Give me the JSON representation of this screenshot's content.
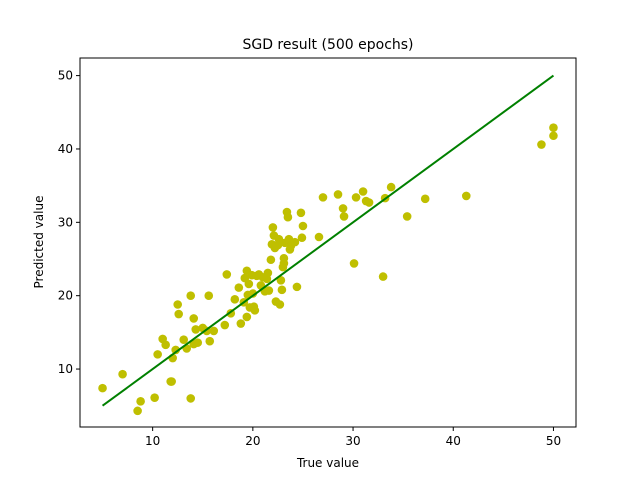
{
  "chart_data": {
    "type": "scatter",
    "title": "SGD result (500 epochs)",
    "xlabel": "True value",
    "ylabel": "Predicted value",
    "xlim": [
      2.75,
      52.25
    ],
    "ylim": [
      2.1,
      52.4
    ],
    "xticks": [
      10,
      20,
      30,
      40,
      50
    ],
    "yticks": [
      10,
      20,
      30,
      40,
      50
    ],
    "grid": false,
    "point_color": "#bfbf00",
    "line_color": "#008000",
    "fit_line": {
      "x": [
        5,
        50
      ],
      "y": [
        5,
        50
      ]
    },
    "points": [
      [
        5.0,
        7.4
      ],
      [
        7.0,
        9.3
      ],
      [
        8.5,
        4.3
      ],
      [
        8.8,
        5.6
      ],
      [
        10.2,
        6.1
      ],
      [
        10.5,
        12.0
      ],
      [
        11.0,
        14.1
      ],
      [
        11.3,
        13.3
      ],
      [
        11.8,
        8.3
      ],
      [
        11.9,
        8.3
      ],
      [
        12.0,
        11.5
      ],
      [
        12.3,
        12.6
      ],
      [
        12.5,
        18.8
      ],
      [
        12.6,
        17.5
      ],
      [
        13.1,
        14.0
      ],
      [
        13.4,
        12.8
      ],
      [
        13.8,
        20.0
      ],
      [
        13.8,
        6.0
      ],
      [
        14.1,
        13.4
      ],
      [
        14.1,
        16.9
      ],
      [
        14.3,
        15.4
      ],
      [
        14.5,
        13.6
      ],
      [
        15.0,
        15.6
      ],
      [
        15.4,
        15.2
      ],
      [
        15.6,
        20.0
      ],
      [
        15.7,
        13.8
      ],
      [
        16.1,
        15.2
      ],
      [
        17.2,
        16.0
      ],
      [
        17.4,
        22.9
      ],
      [
        17.8,
        17.6
      ],
      [
        18.2,
        19.5
      ],
      [
        18.6,
        21.1
      ],
      [
        18.8,
        16.2
      ],
      [
        19.1,
        19.1
      ],
      [
        19.2,
        22.4
      ],
      [
        19.4,
        17.1
      ],
      [
        19.4,
        23.4
      ],
      [
        19.5,
        20.1
      ],
      [
        19.6,
        21.6
      ],
      [
        19.7,
        18.4
      ],
      [
        19.9,
        22.8
      ],
      [
        20.0,
        20.3
      ],
      [
        20.1,
        18.5
      ],
      [
        20.2,
        18.0
      ],
      [
        20.4,
        22.7
      ],
      [
        20.6,
        22.9
      ],
      [
        20.8,
        21.4
      ],
      [
        21.0,
        22.5
      ],
      [
        21.2,
        20.6
      ],
      [
        21.4,
        22.3
      ],
      [
        21.5,
        23.1
      ],
      [
        21.6,
        20.7
      ],
      [
        21.8,
        24.9
      ],
      [
        21.9,
        27.0
      ],
      [
        22.0,
        29.3
      ],
      [
        22.1,
        28.2
      ],
      [
        22.2,
        26.5
      ],
      [
        22.3,
        19.2
      ],
      [
        22.5,
        26.9
      ],
      [
        22.6,
        27.7
      ],
      [
        22.7,
        18.8
      ],
      [
        22.8,
        22.1
      ],
      [
        22.9,
        20.8
      ],
      [
        23.0,
        23.9
      ],
      [
        23.1,
        24.4
      ],
      [
        23.1,
        25.1
      ],
      [
        23.2,
        27.2
      ],
      [
        23.4,
        31.4
      ],
      [
        23.5,
        30.7
      ],
      [
        23.6,
        27.7
      ],
      [
        23.7,
        26.3
      ],
      [
        23.8,
        26.8
      ],
      [
        24.2,
        27.3
      ],
      [
        24.4,
        21.2
      ],
      [
        24.8,
        31.3
      ],
      [
        24.9,
        27.9
      ],
      [
        25.0,
        29.5
      ],
      [
        26.6,
        28.0
      ],
      [
        27.0,
        33.4
      ],
      [
        28.5,
        33.8
      ],
      [
        29.0,
        31.9
      ],
      [
        29.1,
        30.8
      ],
      [
        30.1,
        24.4
      ],
      [
        30.3,
        33.4
      ],
      [
        31.0,
        34.2
      ],
      [
        31.3,
        32.9
      ],
      [
        31.6,
        32.7
      ],
      [
        33.0,
        22.6
      ],
      [
        33.2,
        33.3
      ],
      [
        33.8,
        34.8
      ],
      [
        35.4,
        30.8
      ],
      [
        37.2,
        33.2
      ],
      [
        41.3,
        33.6
      ],
      [
        48.8,
        40.6
      ],
      [
        50.0,
        41.8
      ],
      [
        50.0,
        42.9
      ]
    ]
  }
}
